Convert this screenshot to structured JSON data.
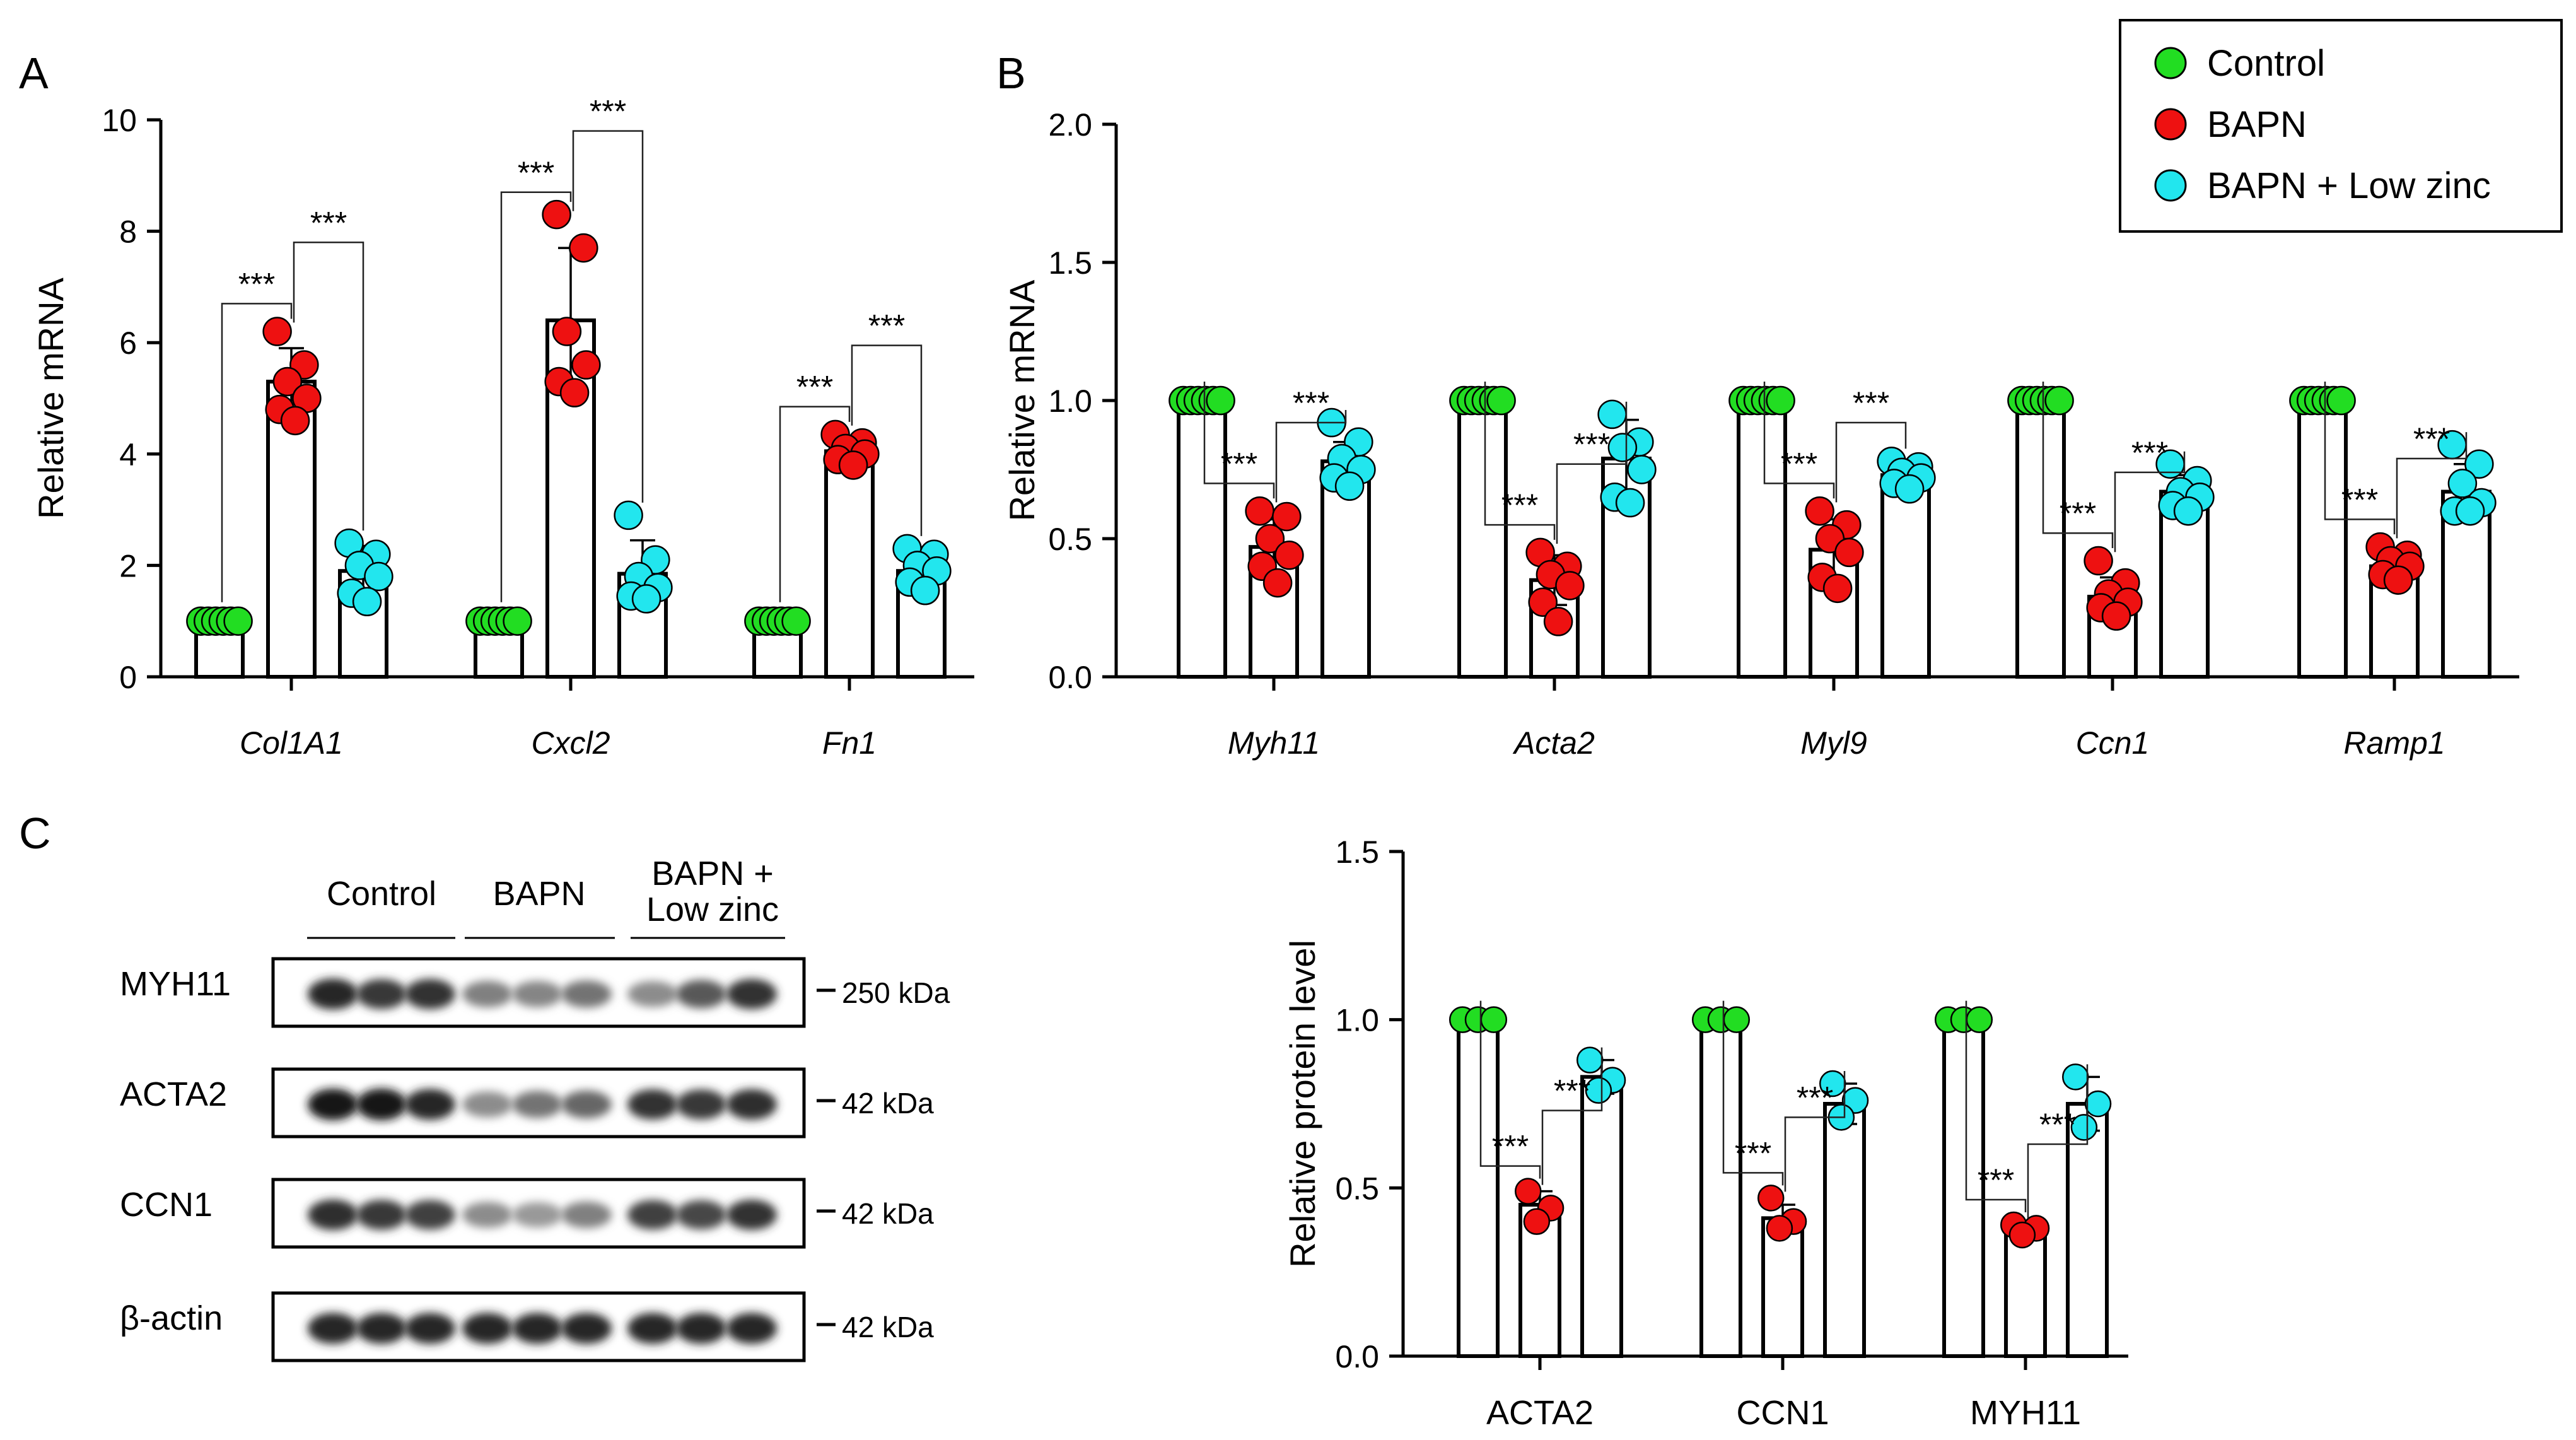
{
  "colors": {
    "Control": "#22dd22",
    "BAPN": "#ee1111",
    "BAPN + Low zinc": "#22e6ee"
  },
  "legend": [
    "Control",
    "BAPN",
    "BAPN + Low zinc"
  ],
  "sig_label": "***",
  "chart_data": [
    {
      "panel": "A",
      "type": "bar",
      "ylabel": "Relative mRNA",
      "ylim": [
        0,
        10
      ],
      "yticks": [
        "0",
        "2",
        "4",
        "6",
        "8",
        "10"
      ],
      "yticks_values": [
        0,
        2,
        4,
        6,
        8,
        10
      ],
      "categories": [
        "Col1A1",
        "Cxcl2",
        "Fn1"
      ],
      "series": [
        {
          "name": "Control",
          "values": [
            1.0,
            1.0,
            1.0
          ],
          "sd": [
            0,
            0,
            0
          ],
          "points": [
            [
              1,
              1,
              1,
              1,
              1,
              1
            ],
            [
              1,
              1,
              1,
              1,
              1,
              1
            ],
            [
              1,
              1,
              1,
              1,
              1,
              1
            ]
          ]
        },
        {
          "name": "BAPN",
          "values": [
            5.3,
            6.4,
            4.05
          ],
          "sd": [
            0.6,
            1.3,
            0.2
          ],
          "points": [
            [
              6.2,
              5.6,
              5.3,
              5.0,
              4.8,
              4.6
            ],
            [
              8.3,
              7.7,
              6.2,
              5.6,
              5.3,
              5.1
            ],
            [
              4.35,
              4.2,
              4.1,
              4.0,
              3.9,
              3.8
            ]
          ]
        },
        {
          "name": "BAPN + Low zinc",
          "values": [
            1.9,
            1.85,
            1.9
          ],
          "sd": [
            0.45,
            0.6,
            0.3
          ],
          "points": [
            [
              2.4,
              2.2,
              2.0,
              1.8,
              1.5,
              1.35
            ],
            [
              2.9,
              2.1,
              1.8,
              1.6,
              1.45,
              1.4
            ],
            [
              2.3,
              2.2,
              2.0,
              1.9,
              1.7,
              1.55
            ]
          ]
        }
      ]
    },
    {
      "panel": "B",
      "type": "bar",
      "ylabel": "Relative mRNA",
      "ylim": [
        0,
        2.0
      ],
      "yticks": [
        "0.0",
        "0.5",
        "1.0",
        "1.5",
        "2.0"
      ],
      "yticks_values": [
        0,
        0.5,
        1.0,
        1.5,
        2.0
      ],
      "categories": [
        "Myh11",
        "Acta2",
        "Myl9",
        "Ccn1",
        "Ramp1"
      ],
      "series": [
        {
          "name": "Control",
          "values": [
            1.0,
            1.0,
            1.0,
            1.0,
            1.0
          ],
          "sd": [
            0,
            0,
            0,
            0,
            0
          ],
          "points": [
            [
              1,
              1,
              1,
              1,
              1,
              1
            ],
            [
              1,
              1,
              1,
              1,
              1,
              1
            ],
            [
              1,
              1,
              1,
              1,
              1,
              1
            ],
            [
              1,
              1,
              1,
              1,
              1,
              1
            ],
            [
              1,
              1,
              1,
              1,
              1,
              1
            ]
          ]
        },
        {
          "name": "BAPN",
          "values": [
            0.47,
            0.35,
            0.46,
            0.29,
            0.4
          ],
          "sd": [
            0.1,
            0.09,
            0.11,
            0.07,
            0.04
          ],
          "points": [
            [
              0.6,
              0.58,
              0.5,
              0.44,
              0.4,
              0.34
            ],
            [
              0.45,
              0.4,
              0.37,
              0.33,
              0.27,
              0.2
            ],
            [
              0.6,
              0.55,
              0.5,
              0.45,
              0.36,
              0.32
            ],
            [
              0.42,
              0.34,
              0.3,
              0.27,
              0.25,
              0.22
            ],
            [
              0.47,
              0.44,
              0.42,
              0.4,
              0.37,
              0.35
            ]
          ]
        },
        {
          "name": "BAPN + Low zinc",
          "values": [
            0.78,
            0.79,
            0.73,
            0.67,
            0.67
          ],
          "sd": [
            0.07,
            0.14,
            0.04,
            0.06,
            0.1
          ],
          "points": [
            [
              0.92,
              0.85,
              0.79,
              0.75,
              0.72,
              0.69
            ],
            [
              0.95,
              0.85,
              0.83,
              0.75,
              0.65,
              0.63
            ],
            [
              0.78,
              0.76,
              0.74,
              0.72,
              0.7,
              0.68
            ],
            [
              0.77,
              0.71,
              0.67,
              0.65,
              0.62,
              0.6
            ],
            [
              0.84,
              0.77,
              0.7,
              0.63,
              0.6,
              0.6
            ]
          ]
        }
      ]
    },
    {
      "panel": "C",
      "type": "bar",
      "ylabel": "Relative protein level",
      "ylim": [
        0,
        1.5
      ],
      "yticks": [
        "0.0",
        "0.5",
        "1.0",
        "1.5"
      ],
      "yticks_values": [
        0,
        0.5,
        1.0,
        1.5
      ],
      "categories": [
        "ACTA2",
        "CCN1",
        "MYH11"
      ],
      "series": [
        {
          "name": "Control",
          "values": [
            1.0,
            1.0,
            1.0
          ],
          "sd": [
            0,
            0,
            0
          ],
          "points": [
            [
              1,
              1,
              1
            ],
            [
              1,
              1,
              1
            ],
            [
              1,
              1,
              1
            ]
          ]
        },
        {
          "name": "BAPN",
          "values": [
            0.45,
            0.41,
            0.37
          ],
          "sd": [
            0.04,
            0.04,
            0.02
          ],
          "points": [
            [
              0.49,
              0.44,
              0.4
            ],
            [
              0.47,
              0.4,
              0.38
            ],
            [
              0.39,
              0.38,
              0.36
            ]
          ]
        },
        {
          "name": "BAPN + Low zinc",
          "values": [
            0.83,
            0.75,
            0.75
          ],
          "sd": [
            0.05,
            0.06,
            0.08
          ],
          "points": [
            [
              0.88,
              0.82,
              0.79
            ],
            [
              0.81,
              0.76,
              0.71
            ],
            [
              0.83,
              0.75,
              0.68
            ]
          ]
        }
      ]
    }
  ],
  "panels": {
    "a_label": "A",
    "b_label": "B",
    "c_label": "C"
  },
  "western_blot": {
    "groups": [
      "Control",
      "BAPN",
      "BAPN +",
      "Low zinc"
    ],
    "rows": [
      {
        "protein": "MYH11",
        "kda": "250 kDa",
        "intensity": [
          0.85,
          0.78,
          0.8,
          0.5,
          0.48,
          0.55,
          0.45,
          0.65,
          0.8
        ]
      },
      {
        "protein": "ACTA2",
        "kda": "42 kDa",
        "intensity": [
          0.9,
          0.92,
          0.85,
          0.45,
          0.55,
          0.6,
          0.8,
          0.78,
          0.82
        ]
      },
      {
        "protein": "CCN1",
        "kda": "42 kDa",
        "intensity": [
          0.82,
          0.78,
          0.75,
          0.45,
          0.4,
          0.5,
          0.75,
          0.72,
          0.8
        ]
      },
      {
        "protein": "β-actin",
        "kda": "42 kDa",
        "intensity": [
          0.85,
          0.85,
          0.85,
          0.85,
          0.85,
          0.85,
          0.85,
          0.85,
          0.85
        ]
      }
    ]
  }
}
